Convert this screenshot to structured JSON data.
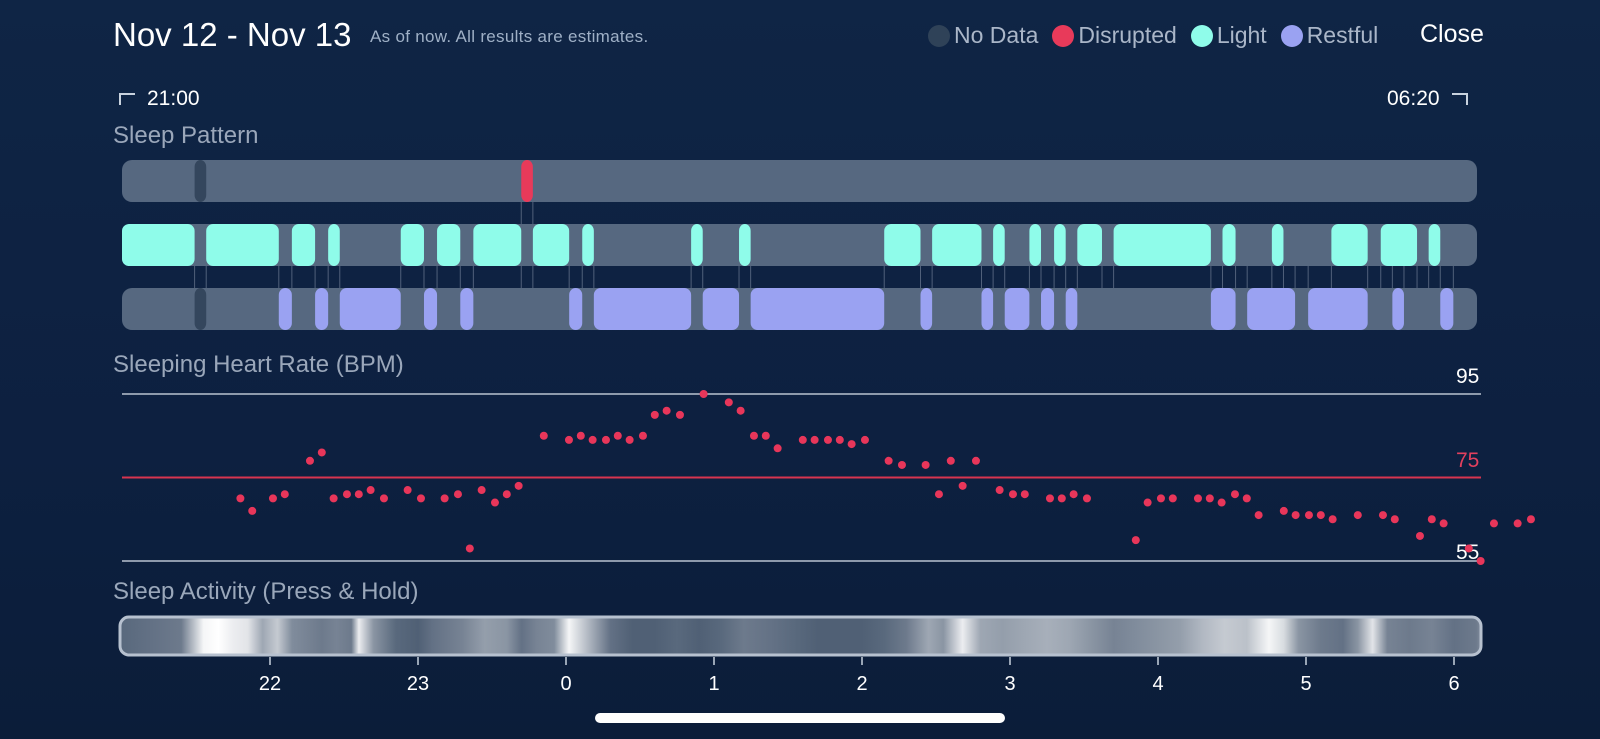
{
  "header": {
    "title": "Nov 12 - Nov 13",
    "subtitle": "As of now. All results are estimates.",
    "close_label": "Close"
  },
  "legend": [
    {
      "label": "No Data",
      "color": "#2f4258"
    },
    {
      "label": "Disrupted",
      "color": "#e83a5a"
    },
    {
      "label": "Light",
      "color": "#8ffcea"
    },
    {
      "label": "Restful",
      "color": "#9aa2f2"
    }
  ],
  "range": {
    "start_label": "21:00",
    "end_label": "06:20"
  },
  "sections": {
    "sleep_pattern": "Sleep Pattern",
    "heart_rate": "Sleeping Heart Rate (BPM)",
    "activity": "Sleep Activity (Press & Hold)"
  },
  "heart_scale": {
    "max": "95",
    "avg": "75",
    "min": "55"
  },
  "colors": {
    "track": "#566880",
    "no_data": "#34465d",
    "disrupted": "#e83a5a",
    "light": "#8ffcea",
    "restful": "#9aa2f2",
    "hr_point": "#e8365a",
    "avg_line": "#d8344f",
    "ref_line": "#8e9aac"
  },
  "chart_data": [
    {
      "type": "timeline",
      "title": "Sleep Pattern",
      "x_unit": "hours since 21:00",
      "x_range": [
        0,
        9.333
      ],
      "rows": [
        {
          "name": "Disrupted",
          "segments": [
            [
              0.5,
              0.58,
              "No Data"
            ],
            [
              2.75,
              2.83,
              "Disrupted"
            ]
          ]
        },
        {
          "name": "Light",
          "segments": [
            [
              0.0,
              0.5
            ],
            [
              0.58,
              1.08
            ],
            [
              1.17,
              1.33
            ],
            [
              1.42,
              1.5
            ],
            [
              1.92,
              2.08
            ],
            [
              2.17,
              2.33
            ],
            [
              2.42,
              2.75
            ],
            [
              2.83,
              3.08
            ],
            [
              3.17,
              3.25
            ],
            [
              3.92,
              4.0
            ],
            [
              4.25,
              4.33
            ],
            [
              5.25,
              5.5
            ],
            [
              5.58,
              5.92
            ],
            [
              6.0,
              6.08
            ],
            [
              6.25,
              6.33
            ],
            [
              6.42,
              6.5
            ],
            [
              6.58,
              6.75
            ],
            [
              6.83,
              7.5
            ],
            [
              7.58,
              7.67
            ],
            [
              7.92,
              8.0
            ],
            [
              8.33,
              8.58
            ],
            [
              8.67,
              8.92
            ],
            [
              9.0,
              9.08
            ]
          ]
        },
        {
          "name": "Restful",
          "segments": [
            [
              0.5,
              0.58,
              "No Data"
            ],
            [
              1.08,
              1.17
            ],
            [
              1.33,
              1.42
            ],
            [
              1.5,
              1.92
            ],
            [
              2.08,
              2.17
            ],
            [
              2.33,
              2.42
            ],
            [
              3.08,
              3.17
            ],
            [
              3.25,
              3.92
            ],
            [
              4.0,
              4.25
            ],
            [
              4.33,
              5.25
            ],
            [
              5.5,
              5.58
            ],
            [
              5.92,
              6.0
            ],
            [
              6.08,
              6.25
            ],
            [
              6.33,
              6.42
            ],
            [
              6.5,
              6.58
            ],
            [
              7.5,
              7.67
            ],
            [
              7.75,
              8.08
            ],
            [
              8.17,
              8.58
            ],
            [
              8.75,
              8.83
            ],
            [
              9.08,
              9.17
            ]
          ]
        }
      ]
    },
    {
      "type": "scatter",
      "title": "Sleeping Heart Rate (BPM)",
      "ylim": [
        55,
        95
      ],
      "reference_lines": [
        55,
        75,
        95
      ],
      "x_unit": "hours since 21:00",
      "points": [
        [
          0.8,
          70
        ],
        [
          0.88,
          67
        ],
        [
          1.02,
          70
        ],
        [
          1.1,
          71
        ],
        [
          1.27,
          79
        ],
        [
          1.35,
          81
        ],
        [
          1.43,
          70
        ],
        [
          1.52,
          71
        ],
        [
          1.6,
          71
        ],
        [
          1.68,
          72
        ],
        [
          1.77,
          70
        ],
        [
          1.93,
          72
        ],
        [
          2.02,
          70
        ],
        [
          2.18,
          70
        ],
        [
          2.27,
          71
        ],
        [
          2.35,
          58
        ],
        [
          2.43,
          72
        ],
        [
          2.52,
          69
        ],
        [
          2.6,
          71
        ],
        [
          2.68,
          73
        ],
        [
          2.85,
          85
        ],
        [
          3.02,
          84
        ],
        [
          3.1,
          85
        ],
        [
          3.18,
          84
        ],
        [
          3.27,
          84
        ],
        [
          3.35,
          85
        ],
        [
          3.43,
          84
        ],
        [
          3.52,
          85
        ],
        [
          3.6,
          90
        ],
        [
          3.68,
          91
        ],
        [
          3.77,
          90
        ],
        [
          3.93,
          95
        ],
        [
          4.1,
          93
        ],
        [
          4.18,
          91
        ],
        [
          4.27,
          85
        ],
        [
          4.35,
          85
        ],
        [
          4.43,
          82
        ],
        [
          4.6,
          84
        ],
        [
          4.68,
          84
        ],
        [
          4.77,
          84
        ],
        [
          4.85,
          84
        ],
        [
          4.93,
          83
        ],
        [
          5.02,
          84
        ],
        [
          5.18,
          79
        ],
        [
          5.27,
          78
        ],
        [
          5.43,
          78
        ],
        [
          5.52,
          71
        ],
        [
          5.6,
          79
        ],
        [
          5.68,
          73
        ],
        [
          5.77,
          79
        ],
        [
          5.93,
          72
        ],
        [
          6.02,
          71
        ],
        [
          6.1,
          71
        ],
        [
          6.27,
          70
        ],
        [
          6.35,
          70
        ],
        [
          6.43,
          71
        ],
        [
          6.52,
          70
        ],
        [
          6.85,
          60
        ],
        [
          6.93,
          69
        ],
        [
          7.02,
          70
        ],
        [
          7.1,
          70
        ],
        [
          7.27,
          70
        ],
        [
          7.35,
          70
        ],
        [
          7.43,
          69
        ],
        [
          7.52,
          71
        ],
        [
          7.6,
          70
        ],
        [
          7.68,
          66
        ],
        [
          7.85,
          67
        ],
        [
          7.93,
          66
        ],
        [
          8.02,
          66
        ],
        [
          8.1,
          66
        ],
        [
          8.18,
          65
        ],
        [
          8.35,
          66
        ],
        [
          8.52,
          66
        ],
        [
          8.6,
          65
        ],
        [
          8.77,
          61
        ],
        [
          8.85,
          65
        ],
        [
          8.93,
          64
        ],
        [
          9.1,
          58
        ],
        [
          9.18,
          55
        ],
        [
          9.27,
          64
        ],
        [
          9.43,
          64
        ],
        [
          9.52,
          65
        ]
      ]
    },
    {
      "type": "heatmap",
      "title": "Sleep Activity (Press & Hold)",
      "x_unit": "hours since 21:00",
      "x_ticks": [
        "22",
        "23",
        "0",
        "1",
        "2",
        "3",
        "4",
        "5",
        "6"
      ],
      "x_tick_values": [
        1,
        2,
        3,
        4,
        5,
        6,
        7,
        8,
        9
      ],
      "intensity": [
        [
          0.0,
          0.15
        ],
        [
          0.2,
          0.2
        ],
        [
          0.4,
          0.25
        ],
        [
          0.55,
          0.95
        ],
        [
          0.65,
          1.0
        ],
        [
          0.75,
          0.9
        ],
        [
          0.85,
          0.85
        ],
        [
          0.95,
          0.5
        ],
        [
          1.05,
          0.7
        ],
        [
          1.15,
          0.35
        ],
        [
          1.25,
          0.3
        ],
        [
          1.35,
          0.25
        ],
        [
          1.45,
          0.3
        ],
        [
          1.55,
          0.25
        ],
        [
          1.6,
          0.9
        ],
        [
          1.7,
          0.4
        ],
        [
          1.85,
          0.15
        ],
        [
          2.0,
          0.1
        ],
        [
          2.1,
          0.2
        ],
        [
          2.3,
          0.3
        ],
        [
          2.45,
          0.45
        ],
        [
          2.6,
          0.4
        ],
        [
          2.7,
          0.2
        ],
        [
          2.8,
          0.3
        ],
        [
          2.92,
          0.35
        ],
        [
          3.02,
          0.95
        ],
        [
          3.15,
          0.6
        ],
        [
          3.3,
          0.2
        ],
        [
          3.45,
          0.1
        ],
        [
          3.6,
          0.1
        ],
        [
          3.75,
          0.15
        ],
        [
          3.9,
          0.1
        ],
        [
          4.05,
          0.15
        ],
        [
          4.2,
          0.25
        ],
        [
          4.4,
          0.2
        ],
        [
          4.55,
          0.15
        ],
        [
          4.7,
          0.1
        ],
        [
          4.85,
          0.1
        ],
        [
          5.0,
          0.1
        ],
        [
          5.15,
          0.15
        ],
        [
          5.3,
          0.25
        ],
        [
          5.45,
          0.5
        ],
        [
          5.55,
          0.4
        ],
        [
          5.68,
          0.9
        ],
        [
          5.8,
          0.5
        ],
        [
          5.95,
          0.45
        ],
        [
          6.1,
          0.5
        ],
        [
          6.25,
          0.55
        ],
        [
          6.4,
          0.5
        ],
        [
          6.55,
          0.4
        ],
        [
          6.7,
          0.3
        ],
        [
          6.85,
          0.35
        ],
        [
          7.0,
          0.4
        ],
        [
          7.15,
          0.45
        ],
        [
          7.3,
          0.6
        ],
        [
          7.45,
          0.7
        ],
        [
          7.6,
          0.65
        ],
        [
          7.75,
          0.95
        ],
        [
          7.85,
          0.8
        ],
        [
          7.95,
          0.4
        ],
        [
          8.1,
          0.25
        ],
        [
          8.25,
          0.2
        ],
        [
          8.35,
          0.4
        ],
        [
          8.45,
          0.85
        ],
        [
          8.55,
          0.3
        ],
        [
          8.7,
          0.25
        ],
        [
          8.85,
          0.3
        ],
        [
          9.0,
          0.2
        ],
        [
          9.15,
          0.25
        ],
        [
          9.3,
          0.35
        ],
        [
          9.45,
          0.3
        ],
        [
          9.6,
          0.2
        ],
        [
          9.8,
          0.15
        ]
      ]
    }
  ]
}
